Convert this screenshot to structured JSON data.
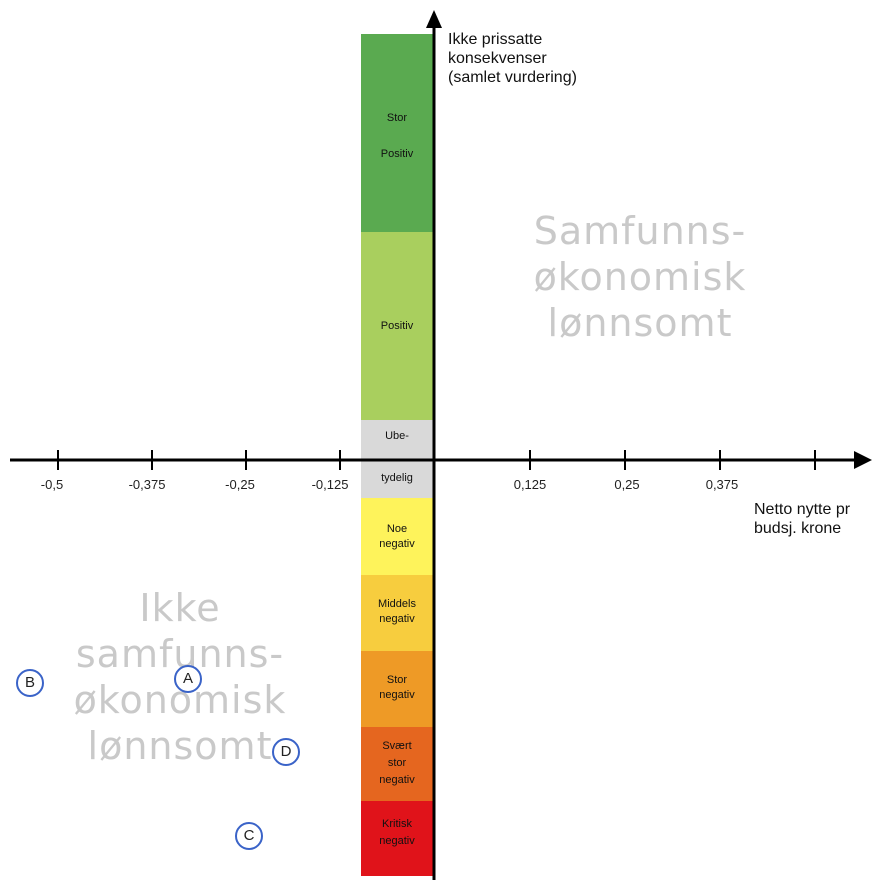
{
  "y_axis_title": [
    "Ikke prissatte",
    "konsekvenser",
    "(samlet vurdering)"
  ],
  "x_axis_title": [
    "Netto nytte pr",
    "budsj. krone"
  ],
  "x_tick_labels": [
    "-0,5",
    "-0,375",
    "-0,25",
    "-0,125",
    "0,125",
    "0,25",
    "0,375"
  ],
  "region_top_right": [
    "Samfunns-",
    "økonomisk",
    "lønnsomt"
  ],
  "region_bottom_left": [
    "Ikke",
    "samfunns-",
    "økonomisk",
    "lønnsomt"
  ],
  "scale_bands": [
    {
      "label": "Stor\nPositiv",
      "color": "#5aaa50"
    },
    {
      "label": "Positiv",
      "color": "#a9cf5e"
    },
    {
      "label": "Ube-\ntydelig",
      "color": "#d9d9d9"
    },
    {
      "label": "Noe\nnegativ",
      "color": "#fef35b"
    },
    {
      "label": "Middels\nnegativ",
      "color": "#f7cd3e"
    },
    {
      "label": "Stor\nnegativ",
      "color": "#ee9a26"
    },
    {
      "label": "Svært\nstor\nnegativ",
      "color": "#e5661f"
    },
    {
      "label": "Kritisk\nnegativ",
      "color": "#e0131a"
    }
  ],
  "points": [
    "B",
    "A",
    "D",
    "C"
  ]
}
